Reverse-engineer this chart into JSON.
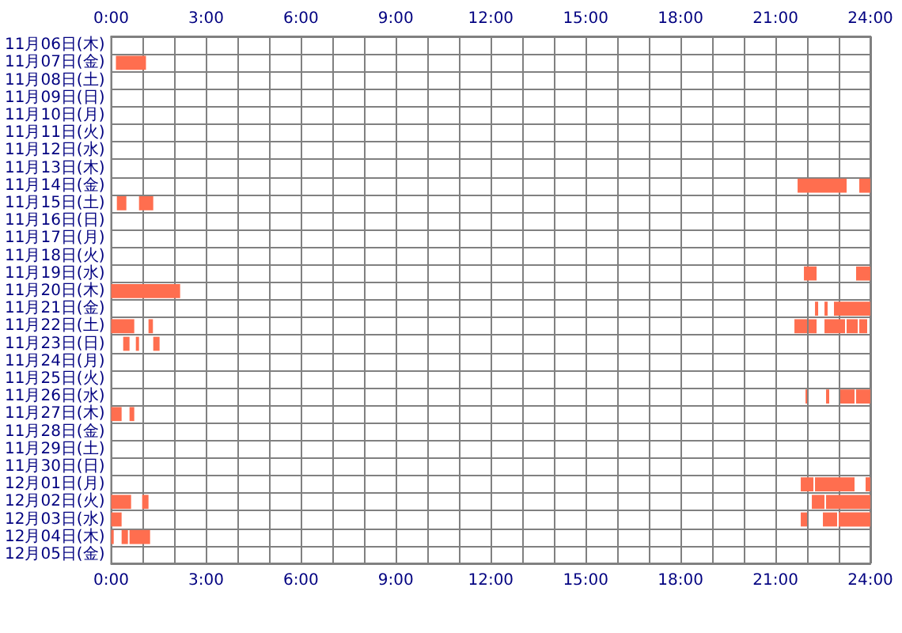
{
  "chart_data": {
    "type": "bar",
    "orientation": "horizontal",
    "grid": true,
    "categories": [
      "11月06日(木)",
      "11月07日(金)",
      "11月08日(土)",
      "11月09日(日)",
      "11月10日(月)",
      "11月11日(火)",
      "11月12日(水)",
      "11月13日(木)",
      "11月14日(金)",
      "11月15日(土)",
      "11月16日(日)",
      "11月17日(月)",
      "11月18日(火)",
      "11月19日(水)",
      "11月20日(木)",
      "11月21日(金)",
      "11月22日(土)",
      "11月23日(日)",
      "11月24日(月)",
      "11月25日(火)",
      "11月26日(水)",
      "11月27日(木)",
      "11月28日(金)",
      "11月29日(土)",
      "11月30日(日)",
      "12月01日(月)",
      "12月02日(火)",
      "12月03日(水)",
      "12月04日(木)",
      "12月05日(金)"
    ],
    "xlim": [
      0,
      24
    ],
    "xticks": [
      {
        "value": 0,
        "label": "0:00"
      },
      {
        "value": 1,
        "label": null
      },
      {
        "value": 2,
        "label": null
      },
      {
        "value": 3,
        "label": "3:00"
      },
      {
        "value": 4,
        "label": null
      },
      {
        "value": 5,
        "label": null
      },
      {
        "value": 6,
        "label": "6:00"
      },
      {
        "value": 7,
        "label": null
      },
      {
        "value": 8,
        "label": null
      },
      {
        "value": 9,
        "label": "9:00"
      },
      {
        "value": 10,
        "label": null
      },
      {
        "value": 11,
        "label": null
      },
      {
        "value": 12,
        "label": "12:00"
      },
      {
        "value": 13,
        "label": null
      },
      {
        "value": 14,
        "label": null
      },
      {
        "value": 15,
        "label": "15:00"
      },
      {
        "value": 16,
        "label": null
      },
      {
        "value": 17,
        "label": null
      },
      {
        "value": 18,
        "label": "18:00"
      },
      {
        "value": 19,
        "label": null
      },
      {
        "value": 20,
        "label": null
      },
      {
        "value": 21,
        "label": "21:00"
      },
      {
        "value": 22,
        "label": null
      },
      {
        "value": 23,
        "label": null
      },
      {
        "value": 24,
        "label": "24:00"
      }
    ],
    "x2lim": [
      0,
      24
    ],
    "x2ticks": [
      {
        "value": 0,
        "label": "0:00"
      },
      {
        "value": 1,
        "label": null
      },
      {
        "value": 2,
        "label": null
      },
      {
        "value": 3,
        "label": "3:00"
      },
      {
        "value": 4,
        "label": null
      },
      {
        "value": 5,
        "label": null
      },
      {
        "value": 6,
        "label": "6:00"
      },
      {
        "value": 7,
        "label": null
      },
      {
        "value": 8,
        "label": null
      },
      {
        "value": 9,
        "label": "9:00"
      },
      {
        "value": 10,
        "label": null
      },
      {
        "value": 11,
        "label": null
      },
      {
        "value": 12,
        "label": "12:00"
      },
      {
        "value": 13,
        "label": null
      },
      {
        "value": 14,
        "label": null
      },
      {
        "value": 15,
        "label": "15:00"
      },
      {
        "value": 16,
        "label": null
      },
      {
        "value": 17,
        "label": null
      },
      {
        "value": 18,
        "label": "18:00"
      },
      {
        "value": 19,
        "label": null
      },
      {
        "value": 20,
        "label": null
      },
      {
        "value": 21,
        "label": "21:00"
      },
      {
        "value": 22,
        "label": null
      },
      {
        "value": 23,
        "label": null
      },
      {
        "value": 24,
        "label": "24:00"
      }
    ],
    "series": [
      {
        "color": "#ff6e4f",
        "base": [
          null,
          0.15,
          null,
          null,
          null,
          null,
          null,
          null,
          21.7,
          0.18,
          null,
          null,
          null,
          21.9,
          0,
          22.25,
          0,
          0.38,
          null,
          null,
          21.95,
          0,
          null,
          null,
          null,
          21.8,
          0,
          0,
          0,
          null
        ],
        "values": [
          null,
          0.95,
          null,
          null,
          null,
          null,
          null,
          null,
          1.55,
          0.3,
          null,
          null,
          null,
          0.4,
          2.18,
          0.1,
          0.73,
          0.2,
          null,
          null,
          0.05,
          0.33,
          null,
          null,
          null,
          0.4,
          0.63,
          0.33,
          0.08,
          null
        ]
      },
      {
        "color": "#ff6e4f",
        "base": [
          null,
          null,
          null,
          null,
          null,
          null,
          null,
          null,
          23.65,
          0.88,
          null,
          null,
          null,
          23.55,
          null,
          22.55,
          1.18,
          0.78,
          null,
          null,
          22.6,
          0.58,
          null,
          null,
          null,
          22.25,
          0.98,
          21.8,
          0.33,
          null
        ],
        "values": [
          null,
          null,
          null,
          null,
          null,
          null,
          null,
          null,
          0.35,
          0.45,
          null,
          null,
          null,
          0.45,
          null,
          0.1,
          0.14,
          0.1,
          null,
          null,
          0.1,
          0.15,
          null,
          null,
          null,
          1.25,
          0.2,
          0.2,
          0.2,
          null
        ]
      },
      {
        "color": "#ff6e4f",
        "base": [
          null,
          null,
          null,
          null,
          null,
          null,
          null,
          null,
          null,
          null,
          null,
          null,
          null,
          null,
          null,
          22.85,
          21.6,
          1.33,
          null,
          null,
          23.05,
          null,
          null,
          null,
          null,
          23.85,
          22.15,
          22.5,
          0.58,
          null
        ],
        "values": [
          null,
          null,
          null,
          null,
          null,
          null,
          null,
          null,
          null,
          null,
          null,
          null,
          null,
          null,
          null,
          1.15,
          0.4,
          0.2,
          null,
          null,
          0.45,
          null,
          null,
          null,
          null,
          0.15,
          0.4,
          0.45,
          0.65,
          null
        ]
      },
      {
        "color": "#ff6e4f",
        "base": [
          null,
          null,
          null,
          null,
          null,
          null,
          null,
          null,
          null,
          null,
          null,
          null,
          null,
          null,
          null,
          null,
          22.05,
          null,
          null,
          null,
          23.55,
          null,
          null,
          null,
          null,
          null,
          22.6,
          23.0,
          null,
          null
        ],
        "values": [
          null,
          null,
          null,
          null,
          null,
          null,
          null,
          null,
          null,
          null,
          null,
          null,
          null,
          null,
          null,
          null,
          0.25,
          null,
          null,
          null,
          0.45,
          null,
          null,
          null,
          null,
          null,
          1.4,
          1.0,
          null,
          null
        ]
      },
      {
        "color": "#ff6e4f",
        "base": [
          null,
          null,
          null,
          null,
          null,
          null,
          null,
          null,
          null,
          null,
          null,
          null,
          null,
          null,
          null,
          null,
          22.55,
          null,
          null,
          null,
          null,
          null,
          null,
          null,
          null,
          null,
          null,
          null,
          null,
          null
        ],
        "values": [
          null,
          null,
          null,
          null,
          null,
          null,
          null,
          null,
          null,
          null,
          null,
          null,
          null,
          null,
          null,
          null,
          0.65,
          null,
          null,
          null,
          null,
          null,
          null,
          null,
          null,
          null,
          null,
          null,
          null,
          null
        ]
      },
      {
        "color": "#ff6e4f",
        "base": [
          null,
          null,
          null,
          null,
          null,
          null,
          null,
          null,
          null,
          null,
          null,
          null,
          null,
          null,
          null,
          null,
          23.25,
          null,
          null,
          null,
          null,
          null,
          null,
          null,
          null,
          null,
          null,
          null,
          null,
          null
        ],
        "values": [
          null,
          null,
          null,
          null,
          null,
          null,
          null,
          null,
          null,
          null,
          null,
          null,
          null,
          null,
          null,
          null,
          0.35,
          null,
          null,
          null,
          null,
          null,
          null,
          null,
          null,
          null,
          null,
          null,
          null,
          null
        ]
      },
      {
        "color": "#ff6e4f",
        "base": [
          null,
          null,
          null,
          null,
          null,
          null,
          null,
          null,
          null,
          null,
          null,
          null,
          null,
          null,
          null,
          null,
          23.65,
          null,
          null,
          null,
          null,
          null,
          null,
          null,
          null,
          null,
          null,
          null,
          null,
          null
        ],
        "values": [
          null,
          null,
          null,
          null,
          null,
          null,
          null,
          null,
          null,
          null,
          null,
          null,
          null,
          null,
          null,
          null,
          0.25,
          null,
          null,
          null,
          null,
          null,
          null,
          null,
          null,
          null,
          null,
          null,
          null,
          null
        ]
      }
    ]
  }
}
